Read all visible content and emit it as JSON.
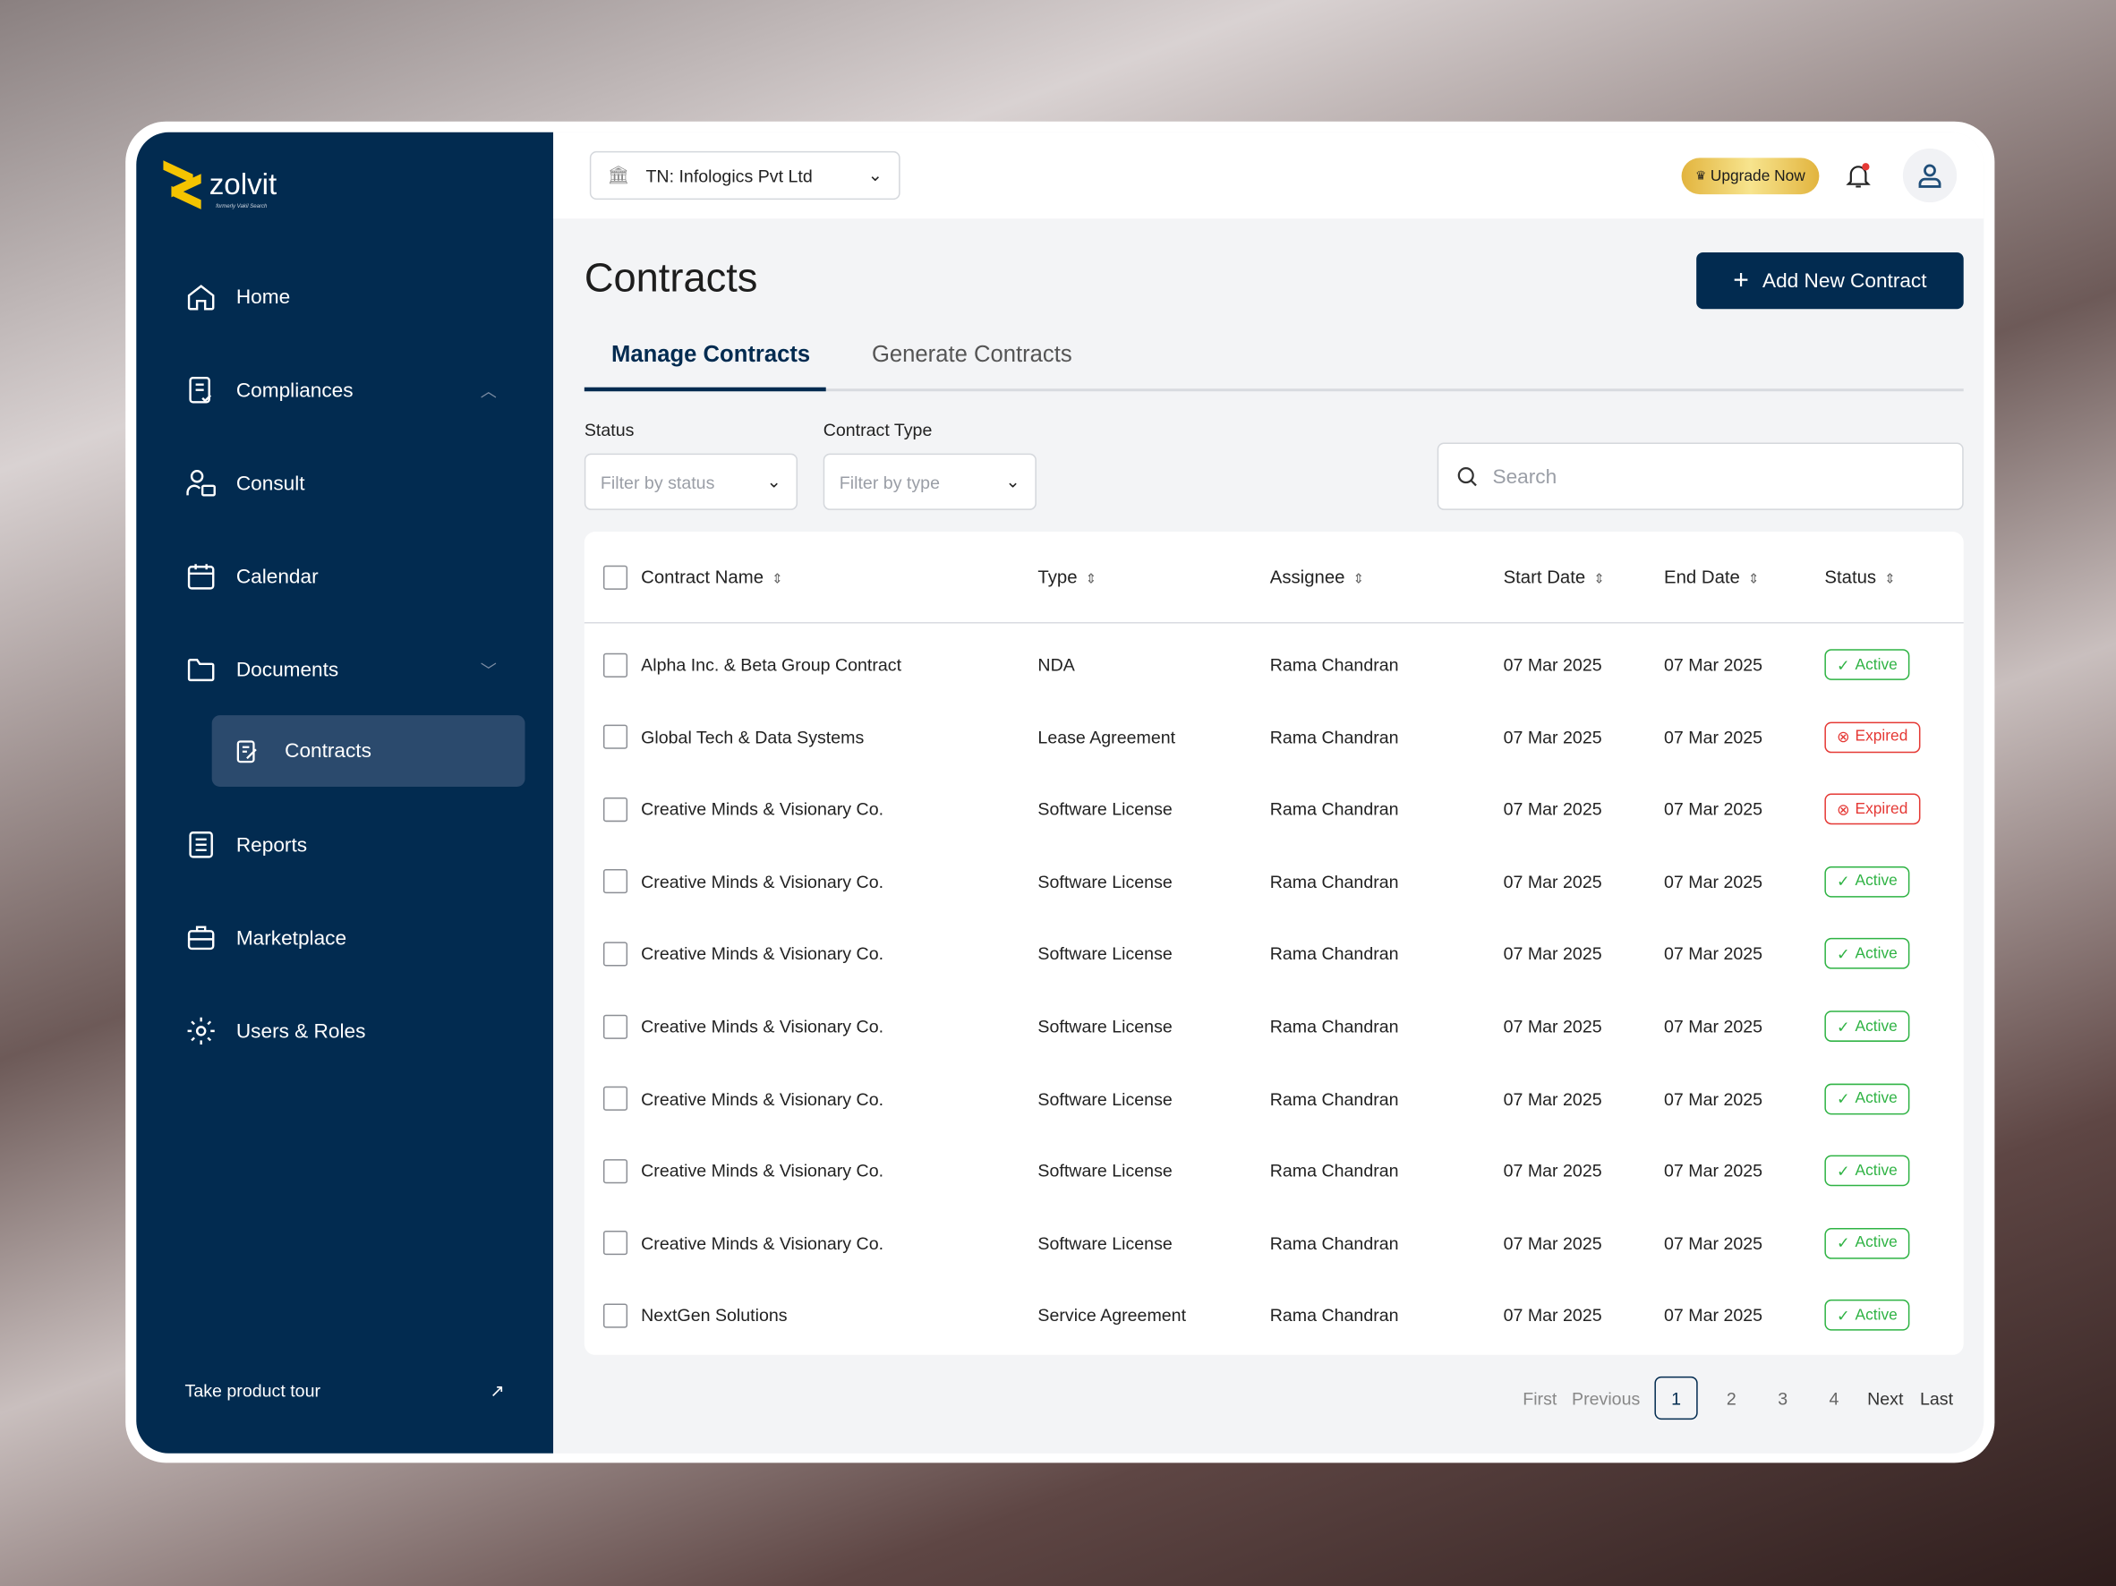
{
  "brand": {
    "name": "zolvit",
    "tagline": "formerly Vakil Search"
  },
  "sidebar": {
    "items": [
      {
        "label": "Home",
        "icon": "home-icon"
      },
      {
        "label": "Compliances",
        "icon": "compliance-icon"
      },
      {
        "label": "Consult",
        "icon": "consult-icon"
      },
      {
        "label": "Calendar",
        "icon": "calendar-icon"
      },
      {
        "label": "Documents",
        "icon": "folder-icon"
      },
      {
        "label": "Reports",
        "icon": "report-icon"
      },
      {
        "label": "Marketplace",
        "icon": "briefcase-icon"
      },
      {
        "label": "Users & Roles",
        "icon": "gear-icon"
      }
    ],
    "active_sub": "Contracts",
    "tour": "Take product tour"
  },
  "header": {
    "org": "TN: Infologics Pvt Ltd",
    "upgrade": "Upgrade Now"
  },
  "page": {
    "title": "Contracts",
    "add_button": "Add New Contract",
    "tabs": [
      "Manage Contracts",
      "Generate Contracts"
    ]
  },
  "filters": {
    "status_label": "Status",
    "status_placeholder": "Filter by status",
    "type_label": "Contract Type",
    "type_placeholder": "Filter by type",
    "search_placeholder": "Search"
  },
  "table": {
    "columns": [
      "Contract Name",
      "Type",
      "Assignee",
      "Start Date",
      "End Date",
      "Status"
    ],
    "rows": [
      [
        "Alpha Inc. & Beta Group Contract",
        "NDA",
        "Rama Chandran",
        "07 Mar 2025",
        "07 Mar 2025",
        "Active"
      ],
      [
        "Global Tech & Data Systems",
        "Lease Agreement",
        "Rama Chandran",
        "07 Mar 2025",
        "07 Mar 2025",
        "Expired"
      ],
      [
        "Creative Minds & Visionary Co.",
        "Software License",
        "Rama Chandran",
        "07 Mar 2025",
        "07 Mar 2025",
        "Expired"
      ],
      [
        "Creative Minds & Visionary Co.",
        "Software License",
        "Rama Chandran",
        "07 Mar 2025",
        "07 Mar 2025",
        "Active"
      ],
      [
        "Creative Minds & Visionary Co.",
        "Software License",
        "Rama Chandran",
        "07 Mar 2025",
        "07 Mar 2025",
        "Active"
      ],
      [
        "Creative Minds & Visionary Co.",
        "Software License",
        "Rama Chandran",
        "07 Mar 2025",
        "07 Mar 2025",
        "Active"
      ],
      [
        "Creative Minds & Visionary Co.",
        "Software License",
        "Rama Chandran",
        "07 Mar 2025",
        "07 Mar 2025",
        "Active"
      ],
      [
        "Creative Minds & Visionary Co.",
        "Software License",
        "Rama Chandran",
        "07 Mar 2025",
        "07 Mar 2025",
        "Active"
      ],
      [
        "Creative Minds & Visionary Co.",
        "Software License",
        "Rama Chandran",
        "07 Mar 2025",
        "07 Mar 2025",
        "Active"
      ],
      [
        "NextGen Solutions",
        "Service Agreement",
        "Rama Chandran",
        "07 Mar 2025",
        "07 Mar 2025",
        "Active"
      ]
    ]
  },
  "pagination": {
    "first": "First",
    "previous": "Previous",
    "pages": [
      "1",
      "2",
      "3",
      "4"
    ],
    "current": "1",
    "next": "Next",
    "last": "Last"
  }
}
